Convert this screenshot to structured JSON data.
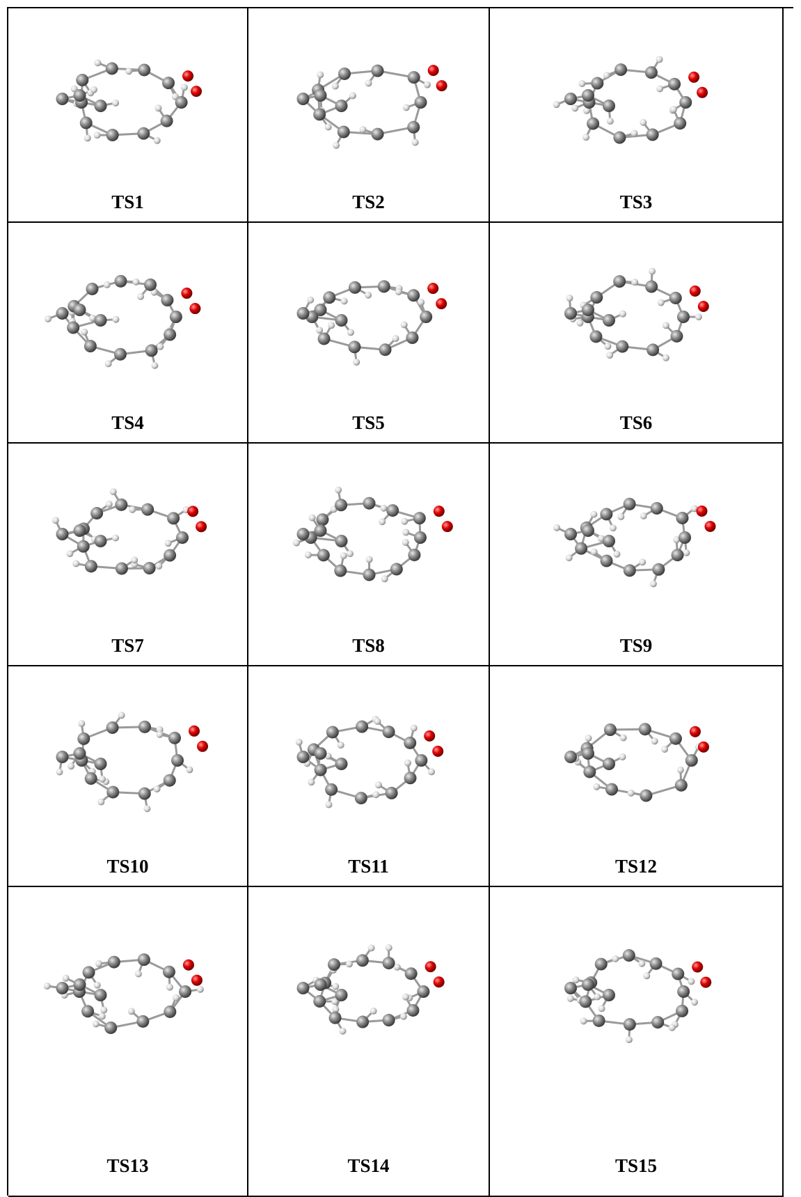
{
  "table": {
    "rows": [
      [
        "TS1",
        "TS2",
        "TS3"
      ],
      [
        "TS4",
        "TS5",
        "TS6"
      ],
      [
        "TS7",
        "TS8",
        "TS9"
      ],
      [
        "TS10",
        "TS11",
        "TS12"
      ],
      [
        "TS13",
        "TS14",
        "TS15"
      ]
    ]
  }
}
